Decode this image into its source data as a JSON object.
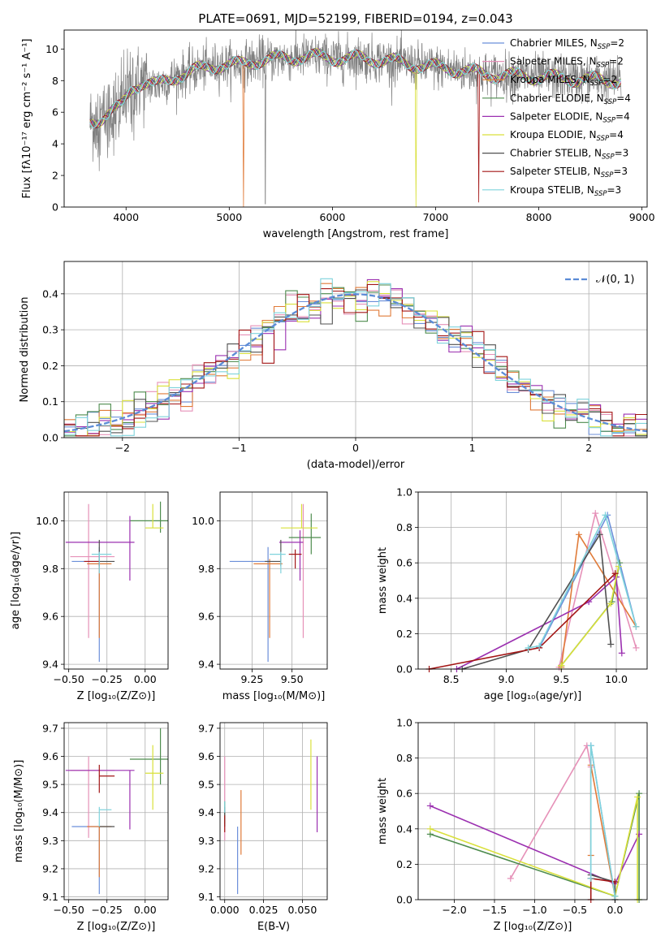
{
  "colors": {
    "series": [
      "#6b8fd9",
      "#e691b8",
      "#e07b39",
      "#4e8c4e",
      "#9b30b0",
      "#d9e03a",
      "#505050",
      "#a31515",
      "#7fd3dc"
    ]
  },
  "chart_data": [
    {
      "id": "spectrum",
      "type": "line",
      "title": "PLATE=0691, MJD=52199, FIBERID=0194, z=0.043",
      "xlabel": "wavelength [Angstrom, rest frame]",
      "ylabel": "Flux [fλ10⁻¹⁷ erg cm⁻² s⁻¹ A⁻¹]",
      "xlim": [
        3400,
        9050
      ],
      "ylim": [
        0,
        11.2
      ],
      "xticks": [
        4000,
        5000,
        6000,
        7000,
        8000,
        9000
      ],
      "yticks": [
        0,
        2,
        4,
        6,
        8,
        10
      ],
      "grid": false,
      "legend_position": "top-right",
      "legend": [
        {
          "name": "Chabrier MILES, N",
          "sub": "SSP",
          "suffix": "=2"
        },
        {
          "name": "Salpeter MILES, N",
          "sub": "SSP",
          "suffix": "=2"
        },
        {
          "name": "Kroupa MILES, N",
          "sub": "SSP",
          "suffix": "=2"
        },
        {
          "name": "Chabrier ELODIE, N",
          "sub": "SSP",
          "suffix": "=4"
        },
        {
          "name": "Salpeter ELODIE, N",
          "sub": "SSP",
          "suffix": "=4"
        },
        {
          "name": "Kroupa ELODIE, N",
          "sub": "SSP",
          "suffix": "=4"
        },
        {
          "name": "Chabrier STELIB, N",
          "sub": "SSP",
          "suffix": "=3"
        },
        {
          "name": "Salpeter STELIB, N",
          "sub": "SSP",
          "suffix": "=3"
        },
        {
          "name": "Kroupa STELIB, N",
          "sub": "SSP",
          "suffix": "=3"
        }
      ],
      "continuum": {
        "wavelength": [
          3650,
          3750,
          3850,
          3950,
          4050,
          4150,
          4300,
          4500,
          4700,
          4900,
          5100,
          5300,
          5500,
          5700,
          5900,
          6100,
          6300,
          6500,
          6700,
          6900,
          7100,
          7300,
          7500,
          7800,
          8100,
          8400,
          8800
        ],
        "flux": [
          5.4,
          5.6,
          6.0,
          6.3,
          7.5,
          7.9,
          7.7,
          8.3,
          8.7,
          9.0,
          9.0,
          9.3,
          9.4,
          9.5,
          9.5,
          9.4,
          9.4,
          9.3,
          9.1,
          8.9,
          8.8,
          8.6,
          8.4,
          8.3,
          8.2,
          8.1,
          8.0
        ]
      },
      "observed_color": "#808080",
      "observed_noise_sigma": 0.7
    },
    {
      "id": "residuals",
      "type": "line",
      "xlabel": "(data-model)/error",
      "ylabel": "Normed distribution",
      "xlim": [
        -2.5,
        2.5
      ],
      "ylim": [
        0,
        0.49
      ],
      "xticks": [
        -2,
        -1,
        0,
        1,
        2
      ],
      "yticks": [
        0.0,
        0.1,
        0.2,
        0.3,
        0.4
      ],
      "grid": true,
      "legend_position": "top-right",
      "normal_label": "𝒩(0, 1)",
      "normal_color": "#5b8bd6",
      "bin_width": 0.1
    },
    {
      "id": "age_vs_Z",
      "type": "scatter",
      "xlabel": "Z [log₁₀(Z/Z⊙)]",
      "ylabel": "age  [log₁₀(age/yr)]",
      "xlim": [
        -0.53,
        0.15
      ],
      "ylim": [
        9.38,
        10.12
      ],
      "xticks": [
        -0.5,
        -0.25,
        0.0
      ],
      "yticks": [
        9.4,
        9.6,
        9.8,
        10.0
      ],
      "grid": true,
      "points": [
        {
          "x": -0.3,
          "y": 9.83,
          "xerr": [
            0.18,
            0.0
          ],
          "yerr": [
            0.42,
            0.06
          ]
        },
        {
          "x": -0.37,
          "y": 9.85,
          "xerr": [
            0.12,
            0.17
          ],
          "yerr": [
            0.34,
            0.22
          ]
        },
        {
          "x": -0.3,
          "y": 9.82,
          "xerr": [
            0.08,
            0.08
          ],
          "yerr": [
            0.31,
            0.02
          ]
        },
        {
          "x": 0.1,
          "y": 10.0,
          "xerr": [
            0.2,
            0.05
          ],
          "yerr": [
            0.05,
            0.08
          ]
        },
        {
          "x": -0.1,
          "y": 9.91,
          "xerr": [
            0.42,
            0.03
          ],
          "yerr": [
            0.16,
            0.11
          ]
        },
        {
          "x": 0.05,
          "y": 9.97,
          "xerr": [
            0.05,
            0.07
          ],
          "yerr": [
            0.0,
            0.1
          ]
        },
        {
          "x": -0.3,
          "y": 9.83,
          "xerr": [
            0.0,
            0.1
          ],
          "yerr": [
            0.02,
            0.09
          ]
        },
        {
          "x": -0.3,
          "y": 9.83,
          "xerr": [
            0.1,
            0.0
          ],
          "yerr": [
            0.02,
            0.0
          ]
        },
        {
          "x": -0.3,
          "y": 9.86,
          "xerr": [
            0.05,
            0.08
          ],
          "yerr": [
            0.08,
            0.01
          ]
        }
      ]
    },
    {
      "id": "age_vs_mass",
      "type": "scatter",
      "xlabel": "mass [log₁₀(M/M⊙)]",
      "ylabel": "",
      "xlim": [
        9.05,
        9.72
      ],
      "ylim": [
        9.38,
        10.12
      ],
      "xticks": [
        9.25,
        9.5
      ],
      "yticks": [
        9.4,
        9.6,
        9.8,
        10.0
      ],
      "grid": true,
      "points": [
        {
          "x": 9.35,
          "y": 9.83,
          "xerr": [
            0.24,
            0.0
          ],
          "yerr": [
            0.42,
            0.06
          ]
        },
        {
          "x": 9.57,
          "y": 9.85,
          "xerr": [
            0.0,
            0.0
          ],
          "yerr": [
            0.34,
            0.22
          ]
        },
        {
          "x": 9.36,
          "y": 9.82,
          "xerr": [
            0.1,
            0.08
          ],
          "yerr": [
            0.31,
            0.02
          ]
        },
        {
          "x": 9.62,
          "y": 9.93,
          "xerr": [
            0.14,
            0.06
          ],
          "yerr": [
            0.07,
            0.1
          ]
        },
        {
          "x": 9.55,
          "y": 9.91,
          "xerr": [
            0.13,
            0.02
          ],
          "yerr": [
            0.16,
            0.05
          ]
        },
        {
          "x": 9.56,
          "y": 9.97,
          "xerr": [
            0.13,
            0.1
          ],
          "yerr": [
            0.0,
            0.1
          ]
        },
        {
          "x": 9.43,
          "y": 9.83,
          "xerr": [
            0.1,
            0.0
          ],
          "yerr": [
            0.02,
            0.09
          ]
        },
        {
          "x": 9.52,
          "y": 9.86,
          "xerr": [
            0.04,
            0.04
          ],
          "yerr": [
            0.06,
            0.02
          ]
        },
        {
          "x": 9.43,
          "y": 9.86,
          "xerr": [
            0.07,
            0.03
          ],
          "yerr": [
            0.08,
            0.01
          ]
        }
      ]
    },
    {
      "id": "weight_vs_age",
      "type": "line",
      "xlabel": "age  [log₁₀(age/yr)]",
      "ylabel": "mass weight",
      "xlim": [
        8.2,
        10.28
      ],
      "ylim": [
        0,
        1.0
      ],
      "xticks": [
        8.5,
        9.0,
        9.5,
        10.0
      ],
      "yticks": [
        0.0,
        0.2,
        0.4,
        0.6,
        0.8,
        1.0
      ],
      "grid": true,
      "series": [
        {
          "x": [
            9.3,
            9.92,
            10.18
          ],
          "y": [
            0.12,
            0.87,
            0.24
          ]
        },
        {
          "x": [
            9.48,
            9.81,
            10.18
          ],
          "y": [
            0.01,
            0.88,
            0.12
          ]
        },
        {
          "x": [
            9.5,
            9.66,
            10.18
          ],
          "y": [
            0.01,
            0.76,
            0.24
          ]
        },
        {
          "x": [
            9.5,
            9.96,
            10.03
          ],
          "y": [
            0.02,
            0.38,
            0.6
          ]
        },
        {
          "x": [
            8.55,
            9.75,
            10.0,
            10.05
          ],
          "y": [
            0.0,
            0.38,
            0.52,
            0.09
          ]
        },
        {
          "x": [
            9.5,
            9.95,
            10.02
          ],
          "y": [
            0.02,
            0.37,
            0.58
          ]
        },
        {
          "x": [
            8.6,
            9.2,
            9.85,
            9.95
          ],
          "y": [
            0.0,
            0.11,
            0.76,
            0.14
          ]
        },
        {
          "x": [
            8.3,
            9.3,
            9.99
          ],
          "y": [
            0.0,
            0.12,
            0.54
          ]
        },
        {
          "x": [
            9.2,
            9.3,
            9.9,
            10.18
          ],
          "y": [
            0.12,
            0.13,
            0.87,
            0.24
          ]
        }
      ]
    },
    {
      "id": "mass_vs_Z",
      "type": "scatter",
      "xlabel": "Z [log₁₀(Z/Z⊙)]",
      "ylabel": "mass [log₁₀(M/M⊙)]",
      "xlim": [
        -0.53,
        0.15
      ],
      "ylim": [
        9.09,
        9.72
      ],
      "xticks": [
        -0.5,
        -0.25,
        0.0
      ],
      "yticks": [
        9.1,
        9.2,
        9.3,
        9.4,
        9.5,
        9.6,
        9.7
      ],
      "grid": true,
      "points": [
        {
          "x": -0.3,
          "y": 9.35,
          "xerr": [
            0.18,
            0.0
          ],
          "yerr": [
            0.24,
            0.0
          ]
        },
        {
          "x": -0.37,
          "y": 9.55,
          "xerr": [
            0.12,
            0.17
          ],
          "yerr": [
            0.24,
            0.05
          ]
        },
        {
          "x": -0.3,
          "y": 9.35,
          "xerr": [
            0.08,
            0.08
          ],
          "yerr": [
            0.18,
            0.0
          ]
        },
        {
          "x": 0.1,
          "y": 9.59,
          "xerr": [
            0.2,
            0.05
          ],
          "yerr": [
            0.09,
            0.11
          ]
        },
        {
          "x": -0.1,
          "y": 9.55,
          "xerr": [
            0.42,
            0.03
          ],
          "yerr": [
            0.21,
            0.0
          ]
        },
        {
          "x": 0.05,
          "y": 9.54,
          "xerr": [
            0.05,
            0.07
          ],
          "yerr": [
            0.13,
            0.1
          ]
        },
        {
          "x": -0.3,
          "y": 9.35,
          "xerr": [
            0.0,
            0.1
          ],
          "yerr": [
            0.0,
            0.0
          ]
        },
        {
          "x": -0.3,
          "y": 9.53,
          "xerr": [
            0.0,
            0.1
          ],
          "yerr": [
            0.06,
            0.04
          ]
        },
        {
          "x": -0.3,
          "y": 9.41,
          "xerr": [
            0.0,
            0.08
          ],
          "yerr": [
            0.06,
            0.01
          ]
        }
      ]
    },
    {
      "id": "mass_vs_ebv",
      "type": "scatter",
      "xlabel": "E(B-V)",
      "ylabel": "",
      "xlim": [
        -0.003,
        0.066
      ],
      "ylim": [
        9.09,
        9.72
      ],
      "xticks": [
        0.0,
        0.025,
        0.05
      ],
      "yticks": [
        9.1,
        9.2,
        9.3,
        9.4,
        9.5,
        9.6,
        9.7
      ],
      "grid": true,
      "points": [
        {
          "x": 0.0083,
          "y": 9.35,
          "xerr": [
            0,
            0
          ],
          "yerr": [
            0.24,
            0.0
          ]
        },
        {
          "x": 0.0,
          "y": 9.5,
          "xerr": [
            0,
            0
          ],
          "yerr": [
            0.2,
            0.1
          ]
        },
        {
          "x": 0.0105,
          "y": 9.35,
          "xerr": [
            0,
            0
          ],
          "yerr": [
            0.1,
            0.13
          ]
        },
        {
          "x": 0.0,
          "y": 9.4,
          "xerr": [
            0,
            0
          ],
          "yerr": [
            0.04,
            0.04
          ]
        },
        {
          "x": 0.0595,
          "y": 9.47,
          "xerr": [
            0,
            0
          ],
          "yerr": [
            0.14,
            0.13
          ]
        },
        {
          "x": 0.0555,
          "y": 9.54,
          "xerr": [
            0,
            0
          ],
          "yerr": [
            0.13,
            0.12
          ]
        },
        {
          "x": 0.0,
          "y": 9.38,
          "xerr": [
            0,
            0
          ],
          "yerr": [
            0.03,
            0.04
          ]
        },
        {
          "x": 0.0,
          "y": 9.36,
          "xerr": [
            0,
            0
          ],
          "yerr": [
            0.03,
            0.03
          ]
        },
        {
          "x": 0.0,
          "y": 9.42,
          "xerr": [
            0,
            0
          ],
          "yerr": [
            0.02,
            0.02
          ]
        }
      ]
    },
    {
      "id": "weight_vs_Z",
      "type": "line",
      "xlabel": "Z [log₁₀(Z/Z⊙)]",
      "ylabel": "mass weight",
      "xlim": [
        -2.45,
        0.4
      ],
      "ylim": [
        0,
        1.0
      ],
      "xticks": [
        -2.0,
        -1.5,
        -1.0,
        -0.5,
        0.0
      ],
      "yticks": [
        0.0,
        0.2,
        0.4,
        0.6,
        0.8,
        1.0
      ],
      "grid": true,
      "series": [
        {
          "x": [
            -0.3,
            -0.3,
            0.0
          ],
          "y": [
            0.12,
            0.87,
            0.02
          ]
        },
        {
          "x": [
            -1.3,
            -0.35,
            -0.3
          ],
          "y": [
            0.12,
            0.87,
            0.75
          ]
        },
        {
          "x": [
            -0.3,
            -0.3,
            0.0
          ],
          "y": [
            0.25,
            0.76,
            0.02
          ]
        },
        {
          "x": [
            -2.3,
            0.0,
            0.3,
            0.3
          ],
          "y": [
            0.37,
            0.02,
            0.6,
            0.0
          ]
        },
        {
          "x": [
            -2.3,
            0.0,
            0.3
          ],
          "y": [
            0.53,
            0.09,
            0.37
          ]
        },
        {
          "x": [
            -2.3,
            0.0,
            0.28,
            0.28
          ],
          "y": [
            0.4,
            0.02,
            0.58,
            0.0
          ]
        },
        {
          "x": [
            -0.3,
            0.0,
            0.0
          ],
          "y": [
            0.14,
            0.1,
            0.0
          ]
        },
        {
          "x": [
            -0.3,
            -0.3,
            0.0
          ],
          "y": [
            0.0,
            0.12,
            0.1
          ]
        },
        {
          "x": [
            -0.3,
            -0.3,
            0.0
          ],
          "y": [
            0.12,
            0.87,
            0.02
          ]
        }
      ]
    }
  ]
}
